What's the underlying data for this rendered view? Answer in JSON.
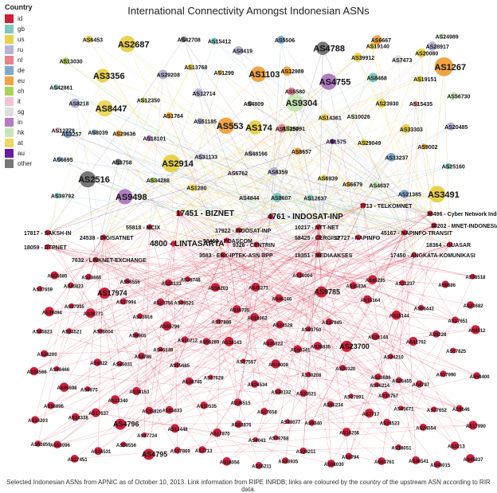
{
  "title": "International Connectivity Amongst Indonesian ASNs",
  "caption": "Selected Indonesian ASNs from APNIC as of October 10, 2013. Link information from RIPE INRDB; links are coloured by the country of the upstream ASN according to RIR data.",
  "legend": {
    "title": "Country",
    "items": [
      {
        "label": "id",
        "color": "#cf1f3a"
      },
      {
        "label": "gb",
        "color": "#7fc9c0"
      },
      {
        "label": "us",
        "color": "#e8d24a"
      },
      {
        "label": "ru",
        "color": "#b6b3d6"
      },
      {
        "label": "nl",
        "color": "#e9828b"
      },
      {
        "label": "de",
        "color": "#7fa8cf"
      },
      {
        "label": "eu",
        "color": "#f0a443"
      },
      {
        "label": "ch",
        "color": "#a9d35a"
      },
      {
        "label": "it",
        "color": "#f4c3d2"
      },
      {
        "label": "sg",
        "color": "#dedede"
      },
      {
        "label": "in",
        "color": "#b07cc2"
      },
      {
        "label": "hk",
        "color": "#c9e6b8"
      },
      {
        "label": "at",
        "color": "#eed860"
      },
      {
        "label": "au",
        "color": "#6a1a9a"
      },
      {
        "label": "other",
        "color": "#777777"
      }
    ]
  },
  "foreign_nodes": [
    {
      "label": "AS174",
      "c": "us",
      "big": 1
    },
    {
      "label": "AS3356",
      "c": "us",
      "big": 1
    },
    {
      "label": "AS2516",
      "c": "other",
      "big": 1
    },
    {
      "label": "AS9304",
      "c": "hk",
      "big": 1
    },
    {
      "label": "AS2914",
      "c": "us",
      "big": 1
    },
    {
      "label": "AS4788",
      "c": "other",
      "big": 1
    },
    {
      "label": "AS1103",
      "c": "eu",
      "big": 1
    },
    {
      "label": "AS2687",
      "c": "us",
      "big": 1
    },
    {
      "label": "AS3491",
      "c": "us",
      "big": 1
    },
    {
      "label": "AS8447",
      "c": "at",
      "big": 1
    },
    {
      "label": "AS1267",
      "c": "eu",
      "big": 1
    },
    {
      "label": "AS553",
      "c": "eu",
      "big": 1
    },
    {
      "label": "AS4755",
      "c": "in",
      "big": 1
    },
    {
      "label": "AS9498",
      "c": "in",
      "big": 1
    },
    {
      "label": "AS3758",
      "c": "other",
      "big": 0
    },
    {
      "label": "AS12714",
      "c": "ru",
      "big": 0
    },
    {
      "label": "AS34288",
      "c": "ch",
      "big": 0
    },
    {
      "label": "AS29049",
      "c": "us",
      "big": 0
    },
    {
      "label": "AS8419",
      "c": "ru",
      "big": 0
    },
    {
      "label": "AS8218",
      "c": "ru",
      "big": 0
    },
    {
      "label": "AS1575",
      "c": "au",
      "big": 0
    },
    {
      "label": "AS6762",
      "c": "it",
      "big": 0
    },
    {
      "label": "AS29208",
      "c": "ru",
      "big": 0
    },
    {
      "label": "AS39912",
      "c": "us",
      "big": 0
    },
    {
      "label": "AS21385",
      "c": "de",
      "big": 0
    },
    {
      "label": "AS5506",
      "c": "de",
      "big": 0
    },
    {
      "label": "AS12350",
      "c": "ch",
      "big": 0
    },
    {
      "label": "AS19151",
      "c": "us",
      "big": 0
    },
    {
      "label": "AS13030",
      "c": "ch",
      "big": 0
    },
    {
      "label": "AS6939",
      "c": "us",
      "big": 0
    },
    {
      "label": "AS6453",
      "c": "us",
      "big": 0
    },
    {
      "label": "AS8359",
      "c": "ru",
      "big": 0
    },
    {
      "label": "AS7473",
      "c": "sg",
      "big": 0
    },
    {
      "label": "AS1764",
      "c": "eu",
      "big": 0
    },
    {
      "label": "AS4809",
      "c": "other",
      "big": 0
    },
    {
      "label": "AS6695",
      "c": "de",
      "big": 0
    },
    {
      "label": "AS1280",
      "c": "us",
      "big": 0
    },
    {
      "label": "AS3257",
      "c": "de",
      "big": 0
    },
    {
      "label": "AS14361",
      "c": "us",
      "big": 0
    },
    {
      "label": "AS9002",
      "c": "eu",
      "big": 0
    },
    {
      "label": "AS15435",
      "c": "nl",
      "big": 0
    },
    {
      "label": "AS4637",
      "c": "hk",
      "big": 0
    },
    {
      "label": "AS8607",
      "c": "gb",
      "big": 0
    },
    {
      "label": "AS20485",
      "c": "ru",
      "big": 0
    },
    {
      "label": "AS4844",
      "c": "sg",
      "big": 0
    },
    {
      "label": "AS42708",
      "c": "other",
      "big": 0
    },
    {
      "label": "AS20080",
      "c": "us",
      "big": 0
    },
    {
      "label": "AS1299",
      "c": "eu",
      "big": 0
    },
    {
      "label": "AS15412",
      "c": "gb",
      "big": 0
    },
    {
      "label": "AS10026",
      "c": "hk",
      "big": 0
    },
    {
      "label": "AS18101",
      "c": "in",
      "big": 0
    },
    {
      "label": "AS23930",
      "c": "us",
      "big": 0
    },
    {
      "label": "AS12859",
      "c": "nl",
      "big": 0
    },
    {
      "label": "AS13237",
      "c": "de",
      "big": 0
    },
    {
      "label": "AS12989",
      "c": "eu",
      "big": 0
    },
    {
      "label": "AS31133",
      "c": "ru",
      "big": 0
    },
    {
      "label": "AS8468",
      "c": "gb",
      "big": 0
    },
    {
      "label": "AS25160",
      "c": "gb",
      "big": 0
    },
    {
      "label": "AS39792",
      "c": "gb",
      "big": 0
    },
    {
      "label": "AS24989",
      "c": "hk",
      "big": 0
    },
    {
      "label": "AS8039",
      "c": "de",
      "big": 0
    },
    {
      "label": "AS5580",
      "c": "nl",
      "big": 0
    },
    {
      "label": "AS33303",
      "c": "us",
      "big": 0
    },
    {
      "label": "AS6667",
      "c": "eu",
      "big": 0
    },
    {
      "label": "AS12779",
      "c": "it",
      "big": 0
    },
    {
      "label": "AS56730",
      "c": "hk",
      "big": 0
    },
    {
      "label": "AS6679",
      "c": "eu",
      "big": 0
    },
    {
      "label": "AS29636",
      "c": "eu",
      "big": 0
    },
    {
      "label": "AS8657",
      "c": "eu",
      "big": 0
    },
    {
      "label": "AS48166",
      "c": "ru",
      "big": 0
    },
    {
      "label": "AS19140",
      "c": "us",
      "big": 0
    },
    {
      "label": "AS13768",
      "c": "us",
      "big": 0
    },
    {
      "label": "AS51185",
      "c": "ru",
      "big": 0
    },
    {
      "label": "AS28917",
      "c": "ru",
      "big": 0
    },
    {
      "label": "AS25091",
      "c": "ch",
      "big": 0
    },
    {
      "label": "AS12637",
      "c": "gb",
      "big": 0
    },
    {
      "label": "AS42861",
      "c": "gb",
      "big": 0
    }
  ],
  "hub_labels": [
    {
      "label": "17451 - BIZNET",
      "big": 1
    },
    {
      "label": "4761 - INDOSAT-INP",
      "big": 1
    },
    {
      "label": "7713 - TELKOMNET",
      "big": 0
    },
    {
      "label": "38496 - Cyber Network Indonesia",
      "big": 0
    },
    {
      "label": "38202 - MNET-INDONESIA",
      "big": 0
    },
    {
      "label": "55818 - MCIX",
      "big": 0
    },
    {
      "label": "17922 - INDOSAT-INP",
      "big": 0
    },
    {
      "label": "10217 - NTT-NET",
      "big": 0
    },
    {
      "label": "17817 - SAKSH-IN",
      "big": 0
    },
    {
      "label": "24538 - DIGISATNET",
      "big": 0
    },
    {
      "label": "4800 - LINTASARTA",
      "big": 1
    },
    {
      "label": "58463 - POASCOM",
      "big": 0
    },
    {
      "label": "9326 - CENTRIN",
      "big": 0
    },
    {
      "label": "58425 - CERGIS2",
      "big": 0
    },
    {
      "label": "17727 - NAPINFO",
      "big": 0
    },
    {
      "label": "45167 - NAPINFO-TRANSIT",
      "big": 0
    },
    {
      "label": "18364 - GUASAR",
      "big": 0
    },
    {
      "label": "18059 - DTPNET",
      "big": 0
    },
    {
      "label": "3583 - ERX-IPTEK-ASN BPP",
      "big": 0
    },
    {
      "label": "18351 - MEDIAAKSES",
      "big": 0
    },
    {
      "label": "17450 - ANGKATA-KOMUNIKASI",
      "big": 0
    },
    {
      "label": "7632 - LINKNET-EXCHANGE",
      "big": 0
    }
  ],
  "id_nodes": [
    "AS23700",
    "AS4795",
    "AS17974",
    "AS4796",
    "AS9785",
    "AS45735",
    "AS24521",
    "AS38757",
    "AS18051",
    "AS9322",
    "AS8686",
    "AS63750",
    "AS7717",
    "AS10535",
    "AS23340",
    "AS4786",
    "AS4043",
    "AS41702",
    "AS3213",
    "AS38211",
    "AS9646",
    "AS46031",
    "AS38494",
    "AS11237",
    "AS55685",
    "AS23666",
    "AS37945",
    "AS58555",
    "AS46146",
    "AS33521",
    "AS56289",
    "AS58030",
    "AS45671",
    "AS17451",
    "AS4787",
    "AS9905",
    "AS17557",
    "AS18062",
    "AS15820",
    "AS18004",
    "AS13448",
    "AS24534",
    "AS6875",
    "AS18077",
    "AS24523",
    "AS38144",
    "AS16256",
    "AS45235",
    "AS17628",
    "AS24531",
    "AS58466",
    "AS38566",
    "AS55796",
    "AS24203",
    "AS17825",
    "AS17995",
    "AS55685",
    "AS15164",
    "AS38896",
    "AS9112",
    "AS18008",
    "AS56096",
    "AS23682",
    "AS38771",
    "AS56203",
    "AS38518",
    "AS24554",
    "AS23756",
    "AS45823",
    "AS45822",
    "AS18004",
    "AS17870",
    "AS38320",
    "AS23686",
    "AS63761",
    "AS17651",
    "AS10208",
    "AS17886",
    "AS24338",
    "AS38748",
    "AS46015",
    "AS28455",
    "AS18056",
    "AS17990",
    "AS45271",
    "AS10212",
    "AS17891",
    "AS38153",
    "AS58400",
    "AS18144",
    "AS63859",
    "AS56211",
    "AS7713",
    "AS46149",
    "AS58341",
    "AS17652",
    "AS38132",
    "AS38515",
    "AS17869",
    "AS45834",
    "AS24528",
    "AS9794",
    "AS17659",
    "AS23916",
    "AS17537",
    "AS63876",
    "AS38541",
    "AS38521",
    "AS58442",
    "AS17658",
    "AS9340",
    "AS9228",
    "AS58556",
    "AS45823",
    "AS17990",
    "AS38143",
    "AS24210",
    "AS38745",
    "AS56234",
    "AS38133",
    "AS23935",
    "AS45837",
    "AS55633",
    "AS17994",
    "AS38835",
    "AS56214",
    "AS17734",
    "AS38200",
    "AS38768",
    "AS45698"
  ]
}
